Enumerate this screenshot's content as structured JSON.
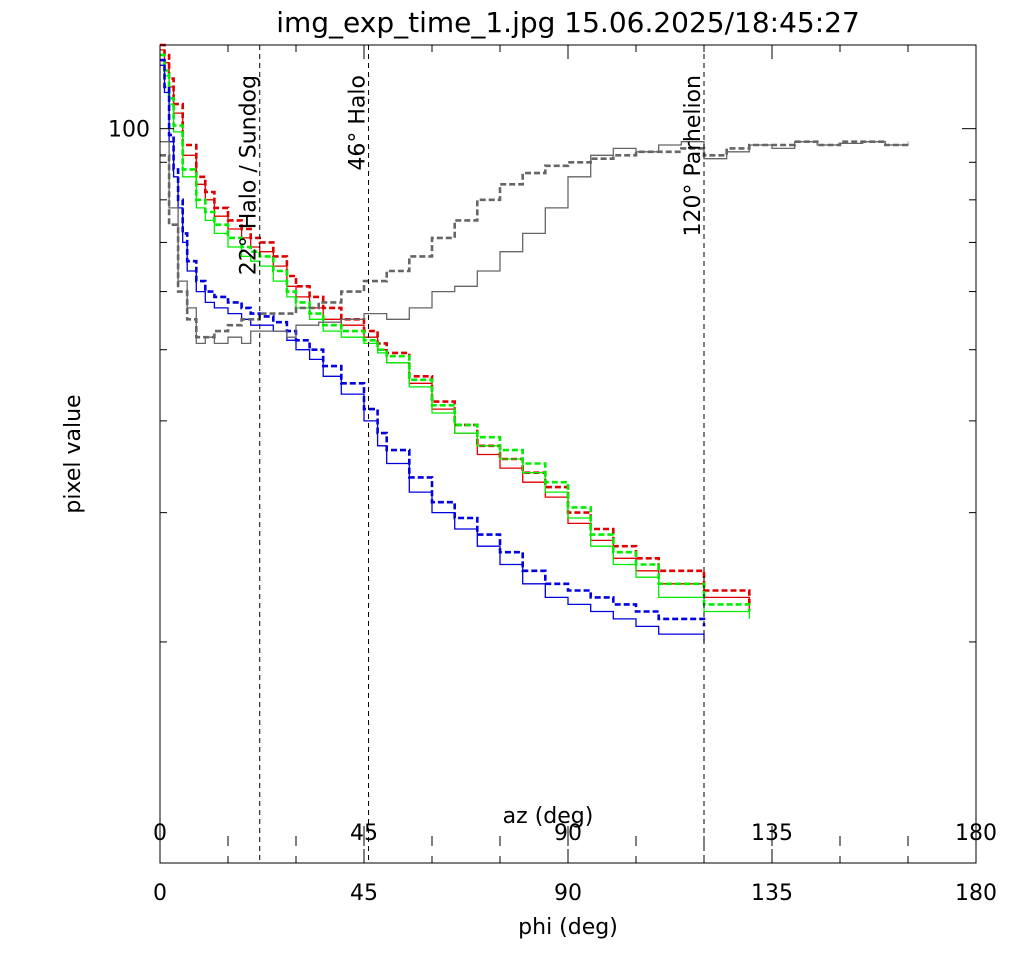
{
  "chart_data": {
    "type": "line",
    "title": "img_exp_time_1.jpg 15.06.2025/18:45:27",
    "xlabel": "phi (deg)",
    "ylabel": "pixel value",
    "xlim": [
      0,
      180
    ],
    "ylim": [
      10,
      130
    ],
    "ylog": true,
    "x_ticks": [
      "0",
      "45",
      "90",
      "135",
      "180"
    ],
    "y_ticks": [
      "100"
    ],
    "secondary_axis": {
      "label": "az (deg)",
      "ticks": [
        "0",
        "45",
        "90",
        "135",
        "180"
      ]
    },
    "annotations": [
      {
        "x": 22,
        "label": "22° Halo / Sundog"
      },
      {
        "x": 46,
        "label": "46° Halo"
      },
      {
        "x": 120,
        "label": "120° Parhelion"
      }
    ],
    "colors": {
      "red": "#e00000",
      "green": "#00ee00",
      "blue": "#0000e0",
      "gray": "#666666"
    },
    "series": [
      {
        "color": "red",
        "dash": false,
        "x": [
          0,
          1,
          2,
          3,
          5,
          8,
          10,
          12,
          15,
          18,
          20,
          22,
          25,
          28,
          30,
          33,
          36,
          40,
          45,
          48,
          50,
          55,
          60,
          65,
          70,
          75,
          80,
          85,
          90,
          95,
          100,
          105,
          110,
          120,
          130
        ],
        "y": [
          128,
          123,
          114,
          105,
          92,
          84,
          80,
          76,
          73,
          71,
          69,
          68,
          65,
          61,
          59,
          57,
          55,
          54,
          52,
          50,
          48,
          45,
          41.5,
          38.5,
          36,
          34.5,
          33,
          31.5,
          29,
          27.5,
          26,
          25,
          24,
          23,
          22
        ]
      },
      {
        "color": "red",
        "dash": true,
        "x": [
          0,
          1,
          2,
          3,
          5,
          8,
          10,
          12,
          15,
          18,
          20,
          22,
          25,
          28,
          30,
          33,
          36,
          40,
          45,
          48,
          50,
          55,
          60,
          65,
          70,
          75,
          80,
          85,
          90,
          95,
          100,
          105,
          110,
          120,
          130
        ],
        "y": [
          130,
          126,
          117,
          108,
          95,
          86,
          82,
          78,
          75,
          73,
          71,
          70,
          67,
          63,
          61,
          59,
          57,
          55,
          53,
          51,
          49.5,
          46,
          42.5,
          39.5,
          37,
          35.5,
          34,
          32.5,
          30,
          28.5,
          27,
          26,
          25,
          23.5,
          22.5
        ]
      },
      {
        "color": "green",
        "dash": false,
        "x": [
          0,
          1,
          2,
          3,
          5,
          8,
          10,
          12,
          15,
          18,
          20,
          22,
          25,
          28,
          30,
          33,
          36,
          40,
          45,
          48,
          50,
          55,
          60,
          65,
          70,
          75,
          80,
          85,
          90,
          95,
          100,
          105,
          110,
          120,
          130
        ],
        "y": [
          124,
          118,
          108,
          99,
          86,
          78,
          75,
          72,
          69,
          67,
          66,
          65,
          62,
          59,
          57,
          55,
          53,
          52,
          51,
          49.5,
          48,
          44.5,
          41,
          38.5,
          37,
          35.5,
          34,
          32,
          29.5,
          27,
          25.5,
          24.5,
          23,
          22,
          21.5
        ]
      },
      {
        "color": "green",
        "dash": true,
        "x": [
          0,
          1,
          2,
          3,
          5,
          8,
          10,
          12,
          15,
          18,
          20,
          22,
          25,
          28,
          30,
          33,
          36,
          40,
          45,
          48,
          50,
          55,
          60,
          65,
          70,
          75,
          80,
          85,
          90,
          95,
          100,
          105,
          110,
          120,
          130
        ],
        "y": [
          126,
          120,
          110,
          101,
          88,
          80,
          77,
          74,
          71,
          69,
          68,
          67,
          64,
          60,
          58,
          56,
          54,
          53,
          51.5,
          50,
          49,
          45.5,
          42,
          39.5,
          38,
          36.5,
          35,
          33,
          30.5,
          28,
          26.5,
          25.5,
          24,
          22.5,
          22
        ]
      },
      {
        "color": "blue",
        "dash": false,
        "x": [
          0,
          1,
          2,
          3,
          4,
          5,
          6,
          8,
          10,
          12,
          15,
          18,
          20,
          22,
          25,
          28,
          30,
          33,
          36,
          40,
          45,
          48,
          50,
          55,
          60,
          65,
          70,
          75,
          80,
          85,
          90,
          95,
          100,
          105,
          110,
          120
        ],
        "y": [
          122,
          112,
          96,
          86,
          78,
          70,
          64,
          60,
          58,
          57,
          56,
          55,
          54,
          54,
          53,
          51.5,
          50,
          48.5,
          46,
          43.5,
          40,
          37,
          35,
          32,
          30,
          28.5,
          27,
          25.5,
          24,
          23,
          22.5,
          22,
          21.5,
          21,
          20.5,
          20
        ]
      },
      {
        "color": "blue",
        "dash": true,
        "x": [
          0,
          1,
          2,
          3,
          4,
          5,
          6,
          8,
          10,
          12,
          15,
          18,
          20,
          22,
          25,
          28,
          30,
          33,
          36,
          40,
          45,
          48,
          50,
          55,
          60,
          65,
          70,
          75,
          80,
          85,
          90,
          95,
          100,
          105,
          110,
          120
        ],
        "y": [
          124,
          114,
          98,
          88,
          80,
          72,
          66,
          62,
          60,
          59,
          58,
          57,
          56,
          55.5,
          54.5,
          53,
          51.5,
          50,
          47.5,
          45,
          41.5,
          38.5,
          36.5,
          33.5,
          31,
          29.5,
          28,
          26.5,
          25,
          24,
          23.5,
          23,
          22.5,
          22,
          21.5,
          21
        ]
      },
      {
        "color": "gray",
        "dash": false,
        "x": [
          0,
          2,
          4,
          6,
          8,
          10,
          12,
          15,
          18,
          20,
          22,
          25,
          28,
          30,
          35,
          40,
          45,
          50,
          55,
          60,
          65,
          70,
          75,
          80,
          85,
          90,
          95,
          100,
          105,
          110,
          115,
          120,
          125,
          130,
          135,
          140,
          145,
          150,
          155,
          160,
          165
        ],
        "y": [
          96,
          78,
          62,
          57,
          51,
          52,
          51,
          52,
          51,
          53,
          53,
          53,
          52,
          54,
          54.5,
          55,
          56,
          55,
          57,
          60,
          61,
          64,
          68,
          72,
          78,
          86,
          92,
          94,
          93,
          95,
          96,
          91,
          93,
          95,
          94,
          96,
          95,
          95.5,
          96,
          95,
          95.5
        ]
      },
      {
        "color": "gray",
        "dash": true,
        "x": [
          0,
          2,
          4,
          6,
          8,
          10,
          12,
          15,
          18,
          20,
          22,
          25,
          28,
          30,
          35,
          40,
          45,
          50,
          55,
          60,
          65,
          70,
          75,
          80,
          85,
          90,
          95,
          100,
          105,
          110,
          115,
          120,
          125,
          130,
          135,
          140,
          145,
          150,
          155,
          160,
          165
        ],
        "y": [
          92,
          74,
          60,
          55,
          52,
          52,
          53,
          54,
          55,
          55,
          56,
          56,
          56,
          57,
          58,
          60,
          62,
          64,
          67,
          71,
          75,
          80,
          84,
          87,
          89,
          90,
          91,
          92,
          93,
          93,
          94,
          92,
          94,
          95,
          95,
          96,
          95,
          96,
          96,
          95,
          96
        ]
      }
    ]
  }
}
